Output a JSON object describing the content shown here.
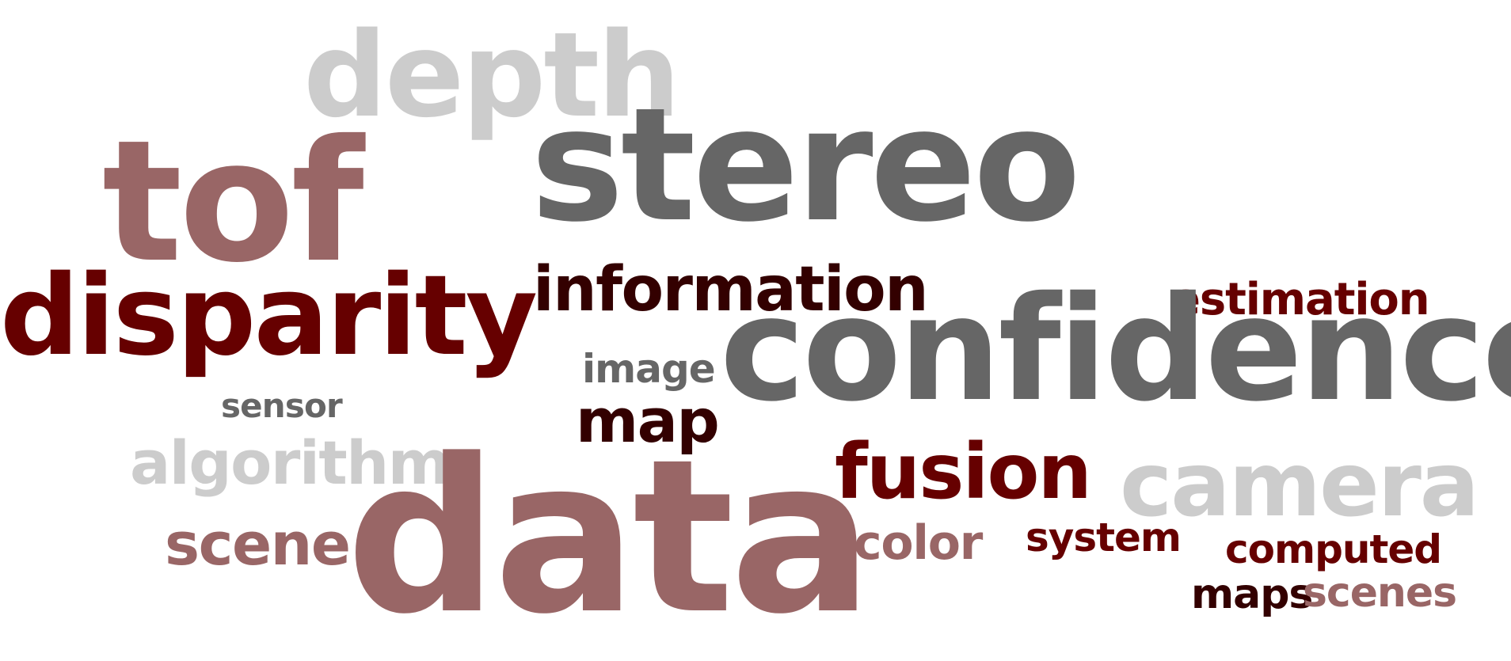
{
  "colors": {
    "light_gray": "#cccccc",
    "dark_gray": "#666666",
    "mauve": "#996666",
    "dark_red": "#660000",
    "maroon": "#330000"
  },
  "words": [
    {
      "key": "depth",
      "text": "depth",
      "color": "#cccccc"
    },
    {
      "key": "stereo",
      "text": "stereo",
      "color": "#666666"
    },
    {
      "key": "tof",
      "text": "tof",
      "color": "#996666"
    },
    {
      "key": "information",
      "text": "information",
      "color": "#330000"
    },
    {
      "key": "estimation",
      "text": "estimation",
      "color": "#660000"
    },
    {
      "key": "disparity",
      "text": "disparity",
      "color": "#660000"
    },
    {
      "key": "confidence",
      "text": "confidence",
      "color": "#666666"
    },
    {
      "key": "image",
      "text": "image",
      "color": "#666666"
    },
    {
      "key": "sensor",
      "text": "sensor",
      "color": "#666666"
    },
    {
      "key": "map",
      "text": "map",
      "color": "#330000"
    },
    {
      "key": "algorithm",
      "text": "algorithm",
      "color": "#cccccc"
    },
    {
      "key": "fusion",
      "text": "fusion",
      "color": "#660000"
    },
    {
      "key": "camera",
      "text": "camera",
      "color": "#cccccc"
    },
    {
      "key": "data",
      "text": "data",
      "color": "#996666"
    },
    {
      "key": "scene",
      "text": "scene",
      "color": "#996666"
    },
    {
      "key": "color",
      "text": "color",
      "color": "#996666"
    },
    {
      "key": "system",
      "text": "system",
      "color": "#660000"
    },
    {
      "key": "computed",
      "text": "computed",
      "color": "#660000"
    },
    {
      "key": "maps",
      "text": "maps",
      "color": "#330000"
    },
    {
      "key": "scenes",
      "text": "scenes",
      "color": "#996666"
    }
  ]
}
